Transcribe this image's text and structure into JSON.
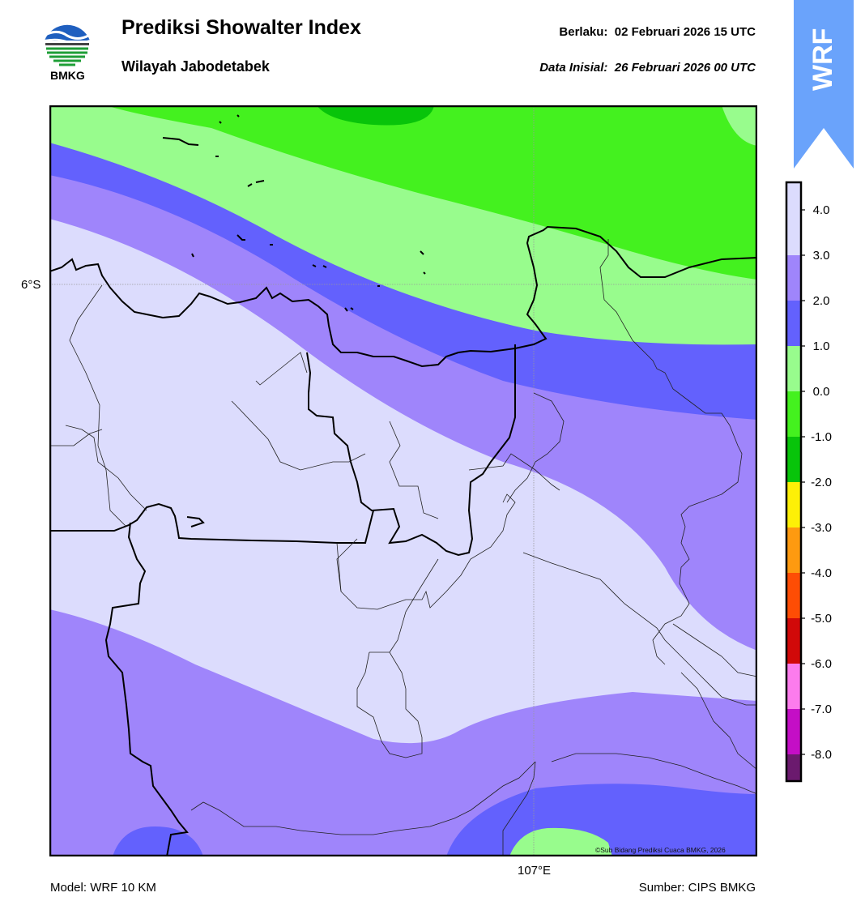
{
  "header": {
    "title": "Prediksi Showalter Index",
    "subtitle": "Wilayah Jabodetabek",
    "valid_time": "Berlaku:  02 Februari 2026 15 UTC",
    "initial_data": "Data Inisial:  26 Februari 2026 00 UTC",
    "logo_text": "BMKG",
    "badge_text": "WRF"
  },
  "map": {
    "parameter": "Showalter Index",
    "lat_label": "6°S",
    "lon_label": "107°E",
    "credit": "©Sub Bidang Prediksi Cuaca BMKG, 2026",
    "graticule": true
  },
  "footer": {
    "model": "Model: WRF 10 KM",
    "source": "Sumber: CIPS BMKG"
  },
  "colorbar": {
    "ticks": [
      "4.0",
      "3.0",
      "2.0",
      "1.0",
      "0.0",
      "-1.0",
      "-2.0",
      "-3.0",
      "-4.0",
      "-5.0",
      "-6.0",
      "-7.0",
      "-8.0"
    ],
    "levels": [
      {
        "range": "3.0 – 4.0+",
        "color": "#dcdcfd"
      },
      {
        "range": "2.0 – 3.0",
        "color": "#9f85fb"
      },
      {
        "range": "1.0 – 2.0",
        "color": "#6361fd"
      },
      {
        "range": "0.0 – 1.0",
        "color": "#98fc8d"
      },
      {
        "range": "-1.0 – 0.0",
        "color": "#44f11f"
      },
      {
        "range": "-2.0 – -1.0",
        "color": "#08c40a"
      },
      {
        "range": "-3.0 – -2.0",
        "color": "#fdf007"
      },
      {
        "range": "-4.0 – -3.0",
        "color": "#fe9a10"
      },
      {
        "range": "-5.0 – -4.0",
        "color": "#fe4d05"
      },
      {
        "range": "-6.0 – -5.0",
        "color": "#d10909"
      },
      {
        "range": "-7.0 – -6.0",
        "color": "#fc7ced"
      },
      {
        "range": "-8.0 – -7.0",
        "color": "#c40ec6"
      },
      {
        "range": "< -8.0",
        "color": "#6b1a6e"
      }
    ]
  }
}
